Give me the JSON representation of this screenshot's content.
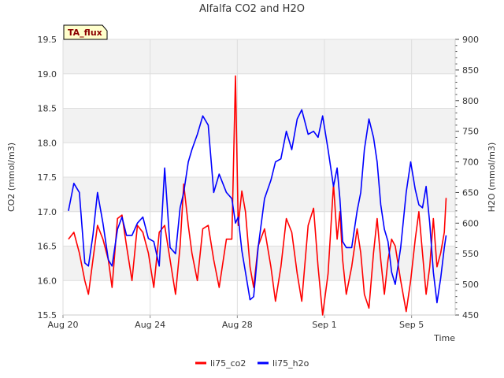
{
  "chart_data": {
    "type": "line",
    "title": "Alfalfa CO2 and H2O",
    "xlabel": "Time",
    "ylabel": "CO2 (mmol/m3)",
    "y2label": "H2O (mmol/m3)",
    "badge": "TA_flux",
    "x_axis": {
      "type": "date",
      "range": [
        "2023-08-20",
        "2023-09-07 00:00"
      ]
    },
    "x_ticks": [
      {
        "label": "Aug 20",
        "value": "2023-08-20"
      },
      {
        "label": "Aug 24",
        "value": "2023-08-24"
      },
      {
        "label": "Aug 28",
        "value": "2023-08-28"
      },
      {
        "label": "Sep 1",
        "value": "2023-09-01"
      },
      {
        "label": "Sep 5",
        "value": "2023-09-05"
      }
    ],
    "ylim": [
      15.5,
      19.5
    ],
    "y_ticks": [
      "15.5",
      "16.0",
      "16.5",
      "17.0",
      "17.5",
      "18.0",
      "18.5",
      "19.0",
      "19.5"
    ],
    "y2lim": [
      450,
      900
    ],
    "y2_ticks": [
      "450",
      "500",
      "550",
      "600",
      "650",
      "700",
      "750",
      "800",
      "850",
      "900"
    ],
    "grid": true,
    "legend_position": "bottom-center",
    "series": [
      {
        "name": "li75_co2",
        "axis": "left",
        "color": "#ff0000",
        "points": [
          [
            "2023-08-20 06:00",
            16.6
          ],
          [
            "2023-08-20 12:00",
            16.7
          ],
          [
            "2023-08-20 18:00",
            16.4
          ],
          [
            "2023-08-21 00:00",
            16.0
          ],
          [
            "2023-08-21 04:00",
            15.8
          ],
          [
            "2023-08-21 09:00",
            16.3
          ],
          [
            "2023-08-21 14:00",
            16.8
          ],
          [
            "2023-08-21 20:00",
            16.6
          ],
          [
            "2023-08-22 02:00",
            16.3
          ],
          [
            "2023-08-22 06:00",
            15.9
          ],
          [
            "2023-08-22 12:00",
            16.9
          ],
          [
            "2023-08-22 17:00",
            16.95
          ],
          [
            "2023-08-22 22:00",
            16.5
          ],
          [
            "2023-08-23 04:00",
            16.0
          ],
          [
            "2023-08-23 10:00",
            16.8
          ],
          [
            "2023-08-23 16:00",
            16.7
          ],
          [
            "2023-08-23 22:00",
            16.4
          ],
          [
            "2023-08-24 04:00",
            15.9
          ],
          [
            "2023-08-24 10:00",
            16.7
          ],
          [
            "2023-08-24 16:00",
            16.8
          ],
          [
            "2023-08-24 22:00",
            16.3
          ],
          [
            "2023-08-25 04:00",
            15.8
          ],
          [
            "2023-08-25 09:00",
            16.5
          ],
          [
            "2023-08-25 13:00",
            17.4
          ],
          [
            "2023-08-25 18:00",
            16.8
          ],
          [
            "2023-08-25 22:00",
            16.4
          ],
          [
            "2023-08-26 04:00",
            16.0
          ],
          [
            "2023-08-26 10:00",
            16.75
          ],
          [
            "2023-08-26 16:00",
            16.8
          ],
          [
            "2023-08-26 22:00",
            16.3
          ],
          [
            "2023-08-27 04:00",
            15.9
          ],
          [
            "2023-08-27 12:00",
            16.6
          ],
          [
            "2023-08-27 18:00",
            16.6
          ],
          [
            "2023-08-27 22:00",
            18.97
          ],
          [
            "2023-08-28 01:00",
            16.8
          ],
          [
            "2023-08-28 05:00",
            17.3
          ],
          [
            "2023-08-28 09:00",
            17.0
          ],
          [
            "2023-08-28 14:00",
            16.2
          ],
          [
            "2023-08-28 18:00",
            15.9
          ],
          [
            "2023-08-28 23:00",
            16.5
          ],
          [
            "2023-08-29 06:00",
            16.75
          ],
          [
            "2023-08-29 13:00",
            16.2
          ],
          [
            "2023-08-29 18:00",
            15.7
          ],
          [
            "2023-08-30 00:00",
            16.2
          ],
          [
            "2023-08-30 06:00",
            16.9
          ],
          [
            "2023-08-30 12:00",
            16.7
          ],
          [
            "2023-08-30 18:00",
            16.1
          ],
          [
            "2023-08-30 23:00",
            15.7
          ],
          [
            "2023-08-31 06:00",
            16.8
          ],
          [
            "2023-08-31 12:00",
            17.05
          ],
          [
            "2023-08-31 17:00",
            16.2
          ],
          [
            "2023-08-31 22:00",
            15.5
          ],
          [
            "2023-09-01 04:00",
            16.1
          ],
          [
            "2023-09-01 10:00",
            17.4
          ],
          [
            "2023-09-01 14:00",
            16.6
          ],
          [
            "2023-09-01 17:00",
            17.0
          ],
          [
            "2023-09-01 20:00",
            16.3
          ],
          [
            "2023-09-02 00:00",
            15.8
          ],
          [
            "2023-09-02 06:00",
            16.2
          ],
          [
            "2023-09-02 12:00",
            16.75
          ],
          [
            "2023-09-02 16:00",
            16.4
          ],
          [
            "2023-09-02 20:00",
            15.8
          ],
          [
            "2023-09-03 01:00",
            15.6
          ],
          [
            "2023-09-03 06:00",
            16.4
          ],
          [
            "2023-09-03 10:00",
            16.9
          ],
          [
            "2023-09-03 14:00",
            16.3
          ],
          [
            "2023-09-03 18:00",
            15.8
          ],
          [
            "2023-09-03 22:00",
            16.3
          ],
          [
            "2023-09-04 02:00",
            16.6
          ],
          [
            "2023-09-04 06:00",
            16.5
          ],
          [
            "2023-09-04 12:00",
            16.0
          ],
          [
            "2023-09-04 18:00",
            15.55
          ],
          [
            "2023-09-04 23:00",
            16.0
          ],
          [
            "2023-09-05 04:00",
            16.6
          ],
          [
            "2023-09-05 08:00",
            17.0
          ],
          [
            "2023-09-05 12:00",
            16.4
          ],
          [
            "2023-09-05 16:00",
            15.8
          ],
          [
            "2023-09-05 20:00",
            16.2
          ],
          [
            "2023-09-06 00:00",
            16.9
          ],
          [
            "2023-09-06 04:00",
            16.2
          ],
          [
            "2023-09-06 08:00",
            16.4
          ],
          [
            "2023-09-06 12:00",
            16.7
          ],
          [
            "2023-09-06 14:00",
            17.2
          ]
        ]
      },
      {
        "name": "li75_h2o",
        "axis": "right",
        "color": "#0000ff",
        "points": [
          [
            "2023-08-20 06:00",
            620
          ],
          [
            "2023-08-20 12:00",
            665
          ],
          [
            "2023-08-20 18:00",
            650
          ],
          [
            "2023-08-21 00:00",
            535
          ],
          [
            "2023-08-21 04:00",
            530
          ],
          [
            "2023-08-21 09:00",
            580
          ],
          [
            "2023-08-21 14:00",
            650
          ],
          [
            "2023-08-21 20:00",
            600
          ],
          [
            "2023-08-22 02:00",
            540
          ],
          [
            "2023-08-22 06:00",
            530
          ],
          [
            "2023-08-22 12:00",
            590
          ],
          [
            "2023-08-22 17:00",
            610
          ],
          [
            "2023-08-22 22:00",
            580
          ],
          [
            "2023-08-23 04:00",
            580
          ],
          [
            "2023-08-23 10:00",
            600
          ],
          [
            "2023-08-23 16:00",
            610
          ],
          [
            "2023-08-23 22:00",
            575
          ],
          [
            "2023-08-24 04:00",
            570
          ],
          [
            "2023-08-24 10:00",
            530
          ],
          [
            "2023-08-24 16:00",
            690
          ],
          [
            "2023-08-24 22:00",
            560
          ],
          [
            "2023-08-25 04:00",
            550
          ],
          [
            "2023-08-25 09:00",
            625
          ],
          [
            "2023-08-25 13:00",
            650
          ],
          [
            "2023-08-25 18:00",
            700
          ],
          [
            "2023-08-25 22:00",
            720
          ],
          [
            "2023-08-26 04:00",
            745
          ],
          [
            "2023-08-26 10:00",
            775
          ],
          [
            "2023-08-26 16:00",
            760
          ],
          [
            "2023-08-26 22:00",
            650
          ],
          [
            "2023-08-27 04:00",
            680
          ],
          [
            "2023-08-27 12:00",
            650
          ],
          [
            "2023-08-27 18:00",
            640
          ],
          [
            "2023-08-27 22:00",
            600
          ],
          [
            "2023-08-28 01:00",
            610
          ],
          [
            "2023-08-28 05:00",
            555
          ],
          [
            "2023-08-28 09:00",
            520
          ],
          [
            "2023-08-28 14:00",
            475
          ],
          [
            "2023-08-28 18:00",
            480
          ],
          [
            "2023-08-28 23:00",
            560
          ],
          [
            "2023-08-29 06:00",
            640
          ],
          [
            "2023-08-29 13:00",
            670
          ],
          [
            "2023-08-29 18:00",
            700
          ],
          [
            "2023-08-30 00:00",
            705
          ],
          [
            "2023-08-30 06:00",
            750
          ],
          [
            "2023-08-30 12:00",
            720
          ],
          [
            "2023-08-30 18:00",
            770
          ],
          [
            "2023-08-30 23:00",
            785
          ],
          [
            "2023-08-31 06:00",
            745
          ],
          [
            "2023-08-31 12:00",
            750
          ],
          [
            "2023-08-31 17:00",
            740
          ],
          [
            "2023-08-31 22:00",
            775
          ],
          [
            "2023-09-01 04:00",
            720
          ],
          [
            "2023-09-01 10:00",
            660
          ],
          [
            "2023-09-01 14:00",
            690
          ],
          [
            "2023-09-01 17:00",
            640
          ],
          [
            "2023-09-01 20:00",
            570
          ],
          [
            "2023-09-02 00:00",
            560
          ],
          [
            "2023-09-02 06:00",
            560
          ],
          [
            "2023-09-02 12:00",
            620
          ],
          [
            "2023-09-02 16:00",
            650
          ],
          [
            "2023-09-02 20:00",
            720
          ],
          [
            "2023-09-03 01:00",
            770
          ],
          [
            "2023-09-03 06:00",
            740
          ],
          [
            "2023-09-03 10:00",
            700
          ],
          [
            "2023-09-03 14:00",
            630
          ],
          [
            "2023-09-03 18:00",
            590
          ],
          [
            "2023-09-03 22:00",
            570
          ],
          [
            "2023-09-04 02:00",
            520
          ],
          [
            "2023-09-04 06:00",
            500
          ],
          [
            "2023-09-04 12:00",
            560
          ],
          [
            "2023-09-04 18:00",
            650
          ],
          [
            "2023-09-04 23:00",
            700
          ],
          [
            "2023-09-05 04:00",
            655
          ],
          [
            "2023-09-05 08:00",
            630
          ],
          [
            "2023-09-05 12:00",
            625
          ],
          [
            "2023-09-05 16:00",
            660
          ],
          [
            "2023-09-05 20:00",
            600
          ],
          [
            "2023-09-06 00:00",
            520
          ],
          [
            "2023-09-06 04:00",
            470
          ],
          [
            "2023-09-06 08:00",
            510
          ],
          [
            "2023-09-06 12:00",
            560
          ],
          [
            "2023-09-06 14:00",
            580
          ]
        ]
      }
    ]
  }
}
